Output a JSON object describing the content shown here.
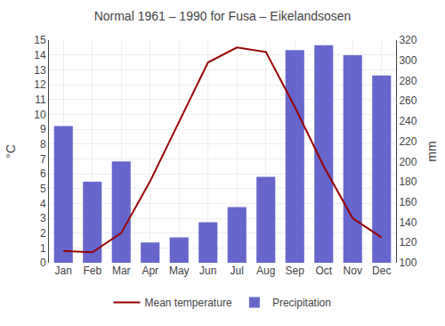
{
  "chart_data": {
    "type": "bar",
    "title": "Normal 1961 – 1990 for Fusa – Eikelandsosen",
    "categories": [
      "Jan",
      "Feb",
      "Mar",
      "Apr",
      "May",
      "Jun",
      "Jul",
      "Aug",
      "Sep",
      "Oct",
      "Nov",
      "Dec"
    ],
    "series": [
      {
        "name": "Mean temperature",
        "type": "line",
        "color": "#990000",
        "values": [
          0.8,
          0.7,
          2.0,
          5.5,
          9.5,
          13.5,
          14.5,
          14.2,
          10.5,
          6.5,
          3.0,
          1.7
        ]
      },
      {
        "name": "Precipitation",
        "type": "bar",
        "color": "#6666cc",
        "axis": "y2",
        "values": [
          235,
          180,
          200,
          120,
          125,
          140,
          155,
          185,
          310,
          315,
          305,
          285
        ]
      }
    ],
    "ylim": [
      0.0,
      15.0
    ],
    "yticks": [
      0,
      1,
      2,
      3,
      4,
      5,
      6,
      7,
      8,
      9,
      10,
      11,
      12,
      13,
      14,
      15
    ],
    "y2lim": [
      100.0,
      320.0
    ],
    "y2ticks": [
      100,
      120,
      140,
      160,
      180,
      200,
      220,
      240,
      260,
      280,
      300,
      320
    ],
    "ylabel": "°C",
    "y2label": "mm",
    "grid": true,
    "legend": "bottom"
  }
}
